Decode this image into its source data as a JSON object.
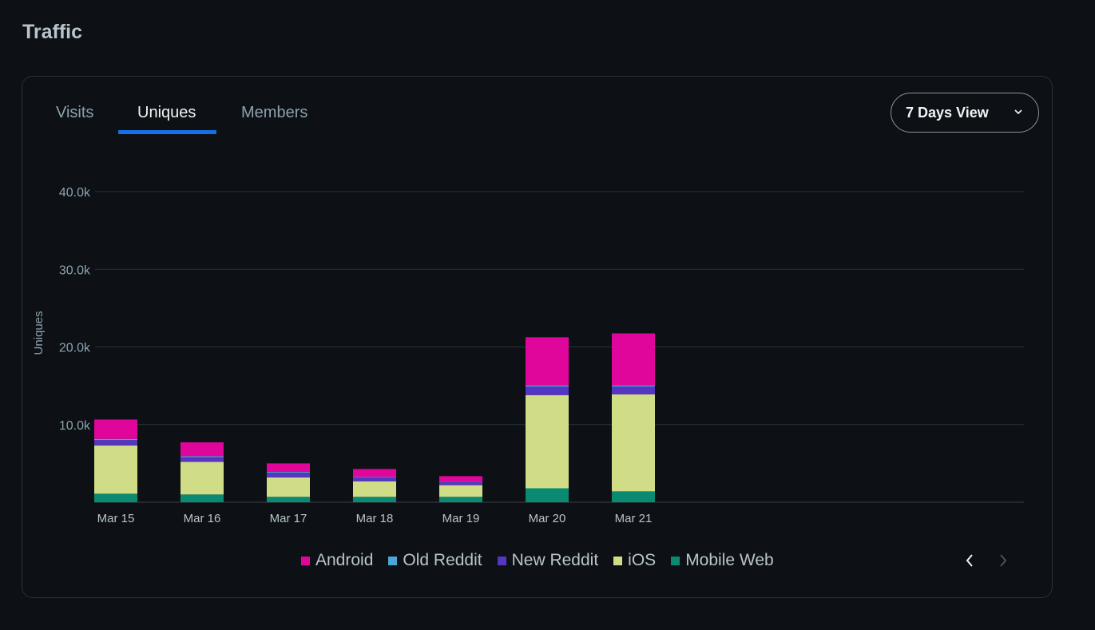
{
  "page": {
    "title": "Traffic"
  },
  "tabs": [
    {
      "label": "Visits",
      "active": false
    },
    {
      "label": "Uniques",
      "active": true
    },
    {
      "label": "Members",
      "active": false
    }
  ],
  "view_select": {
    "value": "7 Days View",
    "icon": "chevron-down-icon"
  },
  "pager": {
    "prev_icon": "chevron-left-icon",
    "next_icon": "chevron-right-icon"
  },
  "chart_data": {
    "type": "bar",
    "stacked": true,
    "ylabel": "Uniques",
    "xlabel": "",
    "ylim": [
      0,
      40000
    ],
    "yticks": [
      10000,
      20000,
      30000,
      40000
    ],
    "ytick_labels": [
      "10.0k",
      "20.0k",
      "30.0k",
      "40.0k"
    ],
    "grid": true,
    "legend_position": "bottom",
    "categories": [
      "Mar 15",
      "Mar 16",
      "Mar 17",
      "Mar 18",
      "Mar 19",
      "Mar 20",
      "Mar 21"
    ],
    "series": [
      {
        "name": "Mobile Web",
        "color": "#0b8a72",
        "values": [
          1100,
          1000,
          700,
          700,
          700,
          1800,
          1400
        ]
      },
      {
        "name": "iOS",
        "color": "#d1dc87",
        "values": [
          6200,
          4200,
          2500,
          2000,
          1500,
          12000,
          12500
        ]
      },
      {
        "name": "New Reddit",
        "color": "#5535c2",
        "values": [
          700,
          600,
          600,
          500,
          400,
          1100,
          1000
        ]
      },
      {
        "name": "Old Reddit",
        "color": "#4aa8d8",
        "values": [
          150,
          120,
          100,
          80,
          60,
          150,
          150
        ]
      },
      {
        "name": "Android",
        "color": "#e0069b",
        "values": [
          2500,
          1800,
          1100,
          1000,
          700,
          6200,
          6700
        ]
      }
    ],
    "legend_order": [
      "Android",
      "Old Reddit",
      "New Reddit",
      "iOS",
      "Mobile Web"
    ]
  }
}
